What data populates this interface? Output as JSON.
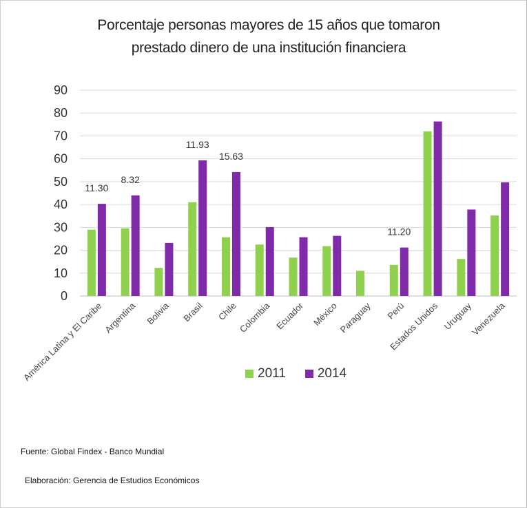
{
  "chart_data": {
    "type": "bar",
    "title_lines": [
      "Porcentaje personas mayores de 15 años que tomaron",
      "prestado dinero de una institución financiera"
    ],
    "categories": [
      "América Latina y El Caribe",
      "Argentina",
      "Bolivia",
      "Brasil",
      "Chile",
      "Colombia",
      "Ecuador",
      "México",
      "Paraguay",
      "Perú",
      "Estados Unidos",
      "Uruguay",
      "Venezuela"
    ],
    "series": [
      {
        "name": "2011",
        "color": "#8fd14f",
        "values": [
          29,
          29.6,
          12.3,
          41,
          25.7,
          22.5,
          16.8,
          21.8,
          11,
          13.6,
          72,
          16.2,
          35.2
        ]
      },
      {
        "name": "2014",
        "color": "#7f2aa8",
        "values": [
          40.3,
          44,
          23.2,
          59.3,
          54.2,
          30.1,
          25.7,
          26.3,
          null,
          21.2,
          76.3,
          37.8,
          49.7
        ]
      }
    ],
    "annotations": [
      {
        "category": "América Latina y El Caribe",
        "text": "11.30"
      },
      {
        "category": "Argentina",
        "text": "8.32"
      },
      {
        "category": "Brasil",
        "text": "11.93"
      },
      {
        "category": "Chile",
        "text": "15.63"
      },
      {
        "category": "Perú",
        "text": "11.20"
      }
    ],
    "yticks": [
      0,
      10,
      20,
      30,
      40,
      50,
      60,
      70,
      80,
      90
    ],
    "ylim": [
      0,
      90
    ],
    "grid": true,
    "legend": "bottom-center"
  },
  "footer": {
    "source": "Fuente:  Global Findex - Banco Mundial",
    "prepared_by": "Elaboración:  Gerencia  de Estudios Económicos"
  }
}
